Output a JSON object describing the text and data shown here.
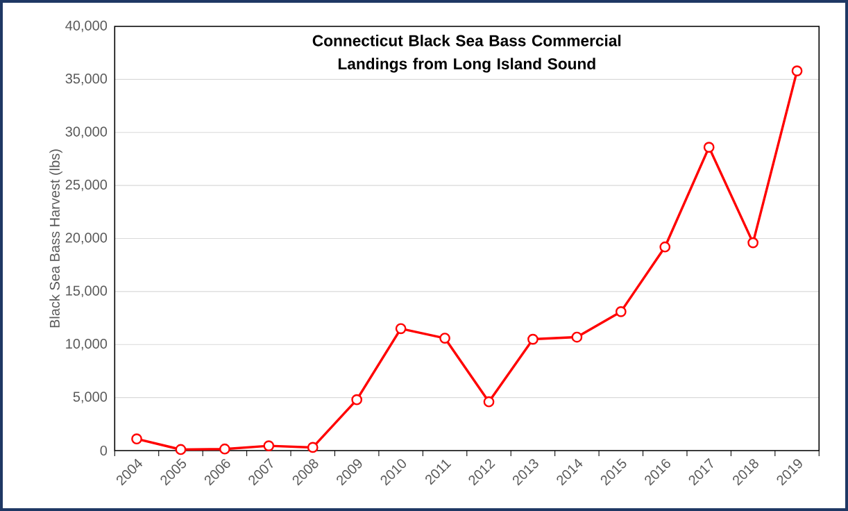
{
  "chart_data": {
    "type": "line",
    "title": "Connecticut Black Sea Bass Commercial Landings from Long Island Sound",
    "ylabel": "Black Sea Bass Harvest (lbs)",
    "categories": [
      "2004",
      "2005",
      "2006",
      "2007",
      "2008",
      "2009",
      "2010",
      "2011",
      "2012",
      "2013",
      "2014",
      "2015",
      "2016",
      "2017",
      "2018",
      "2019"
    ],
    "series": [
      {
        "color": "#ff0000",
        "values": [
          1100,
          100,
          150,
          450,
          300,
          4800,
          11500,
          10600,
          4600,
          10500,
          10700,
          13100,
          19200,
          28600,
          19600,
          35800
        ]
      }
    ],
    "ylim": [
      0,
      40000
    ],
    "yticks": [
      {
        "value": 0,
        "label": "0"
      },
      {
        "value": 5000,
        "label": "5,000"
      },
      {
        "value": 10000,
        "label": "10,000"
      },
      {
        "value": 15000,
        "label": "15,000"
      },
      {
        "value": 20000,
        "label": "20,000"
      },
      {
        "value": 25000,
        "label": "25,000"
      },
      {
        "value": 30000,
        "label": "30,000"
      },
      {
        "value": 35000,
        "label": "35,000"
      },
      {
        "value": 40000,
        "label": "40,000"
      }
    ],
    "grid": "y",
    "marker": "circle",
    "line_style": "solid"
  }
}
